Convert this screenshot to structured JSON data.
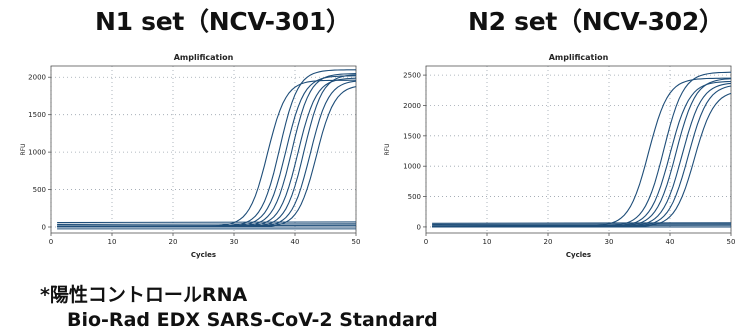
{
  "panels": {
    "left_title": "N1 set（NCV-301）",
    "right_title": "N2 set（NCV-302）"
  },
  "note": {
    "line1": "*陽性コントロールRNA",
    "line2": "Bio-Rad EDX SARS-CoV-2 Standard"
  },
  "colors": {
    "curve": "#1f4e79",
    "grid": "#9aa3ad",
    "axis": "#555555"
  },
  "chart_data": [
    {
      "type": "line",
      "title": "Amplification",
      "xlabel": "Cycles",
      "ylabel": "RFU",
      "xlim": [
        0,
        50
      ],
      "ylim": [
        -80,
        2150
      ],
      "x_ticks": [
        0,
        10,
        20,
        30,
        40,
        50
      ],
      "y_ticks": [
        0,
        500,
        1000,
        1500,
        2000
      ],
      "grid": true,
      "series": [
        {
          "plateau": 1960,
          "midpoint": 35.5,
          "slope": 1.5,
          "base": 10
        },
        {
          "plateau": 2100,
          "midpoint": 37.5,
          "slope": 1.5,
          "base": 10
        },
        {
          "plateau": 2020,
          "midpoint": 38.5,
          "slope": 1.5,
          "base": 10
        },
        {
          "plateau": 2050,
          "midpoint": 39.5,
          "slope": 1.5,
          "base": 5
        },
        {
          "plateau": 1990,
          "midpoint": 40.5,
          "slope": 1.5,
          "base": 5
        },
        {
          "plateau": 2040,
          "midpoint": 41.5,
          "slope": 1.5,
          "base": 0
        },
        {
          "plateau": 1960,
          "midpoint": 42.5,
          "slope": 1.5,
          "base": 0
        },
        {
          "plateau": 1900,
          "midpoint": 43.5,
          "slope": 1.5,
          "base": 0
        }
      ],
      "baselines": [
        60,
        35,
        15,
        0,
        -25
      ]
    },
    {
      "type": "line",
      "title": "Amplification",
      "xlabel": "Cycles",
      "ylabel": "RFU",
      "xlim": [
        0,
        50
      ],
      "ylim": [
        -100,
        2650
      ],
      "x_ticks": [
        0,
        10,
        20,
        30,
        40,
        50
      ],
      "y_ticks": [
        0,
        500,
        1000,
        1500,
        2000,
        2500
      ],
      "grid": true,
      "series": [
        {
          "plateau": 2450,
          "midpoint": 36.5,
          "slope": 1.6,
          "base": 10
        },
        {
          "plateau": 2550,
          "midpoint": 39.0,
          "slope": 1.6,
          "base": 10
        },
        {
          "plateau": 2400,
          "midpoint": 40.0,
          "slope": 1.6,
          "base": 5
        },
        {
          "plateau": 2450,
          "midpoint": 41.0,
          "slope": 1.6,
          "base": 5
        },
        {
          "plateau": 2380,
          "midpoint": 42.0,
          "slope": 1.6,
          "base": 0
        },
        {
          "plateau": 2350,
          "midpoint": 43.0,
          "slope": 1.6,
          "base": 0
        },
        {
          "plateau": 2250,
          "midpoint": 44.0,
          "slope": 1.6,
          "base": 0
        }
      ],
      "baselines": [
        60,
        40,
        20,
        0
      ]
    }
  ]
}
